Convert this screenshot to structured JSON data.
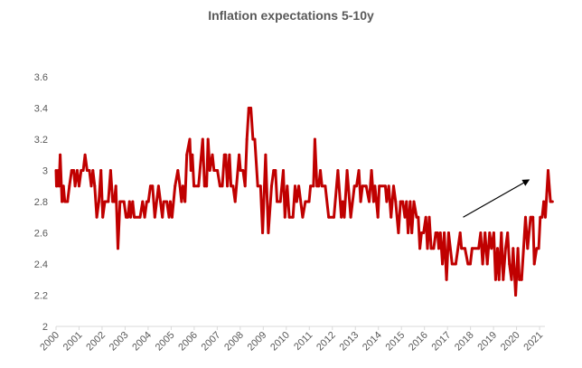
{
  "chart_data": {
    "type": "line",
    "title": "Inflation expectations 5-10y",
    "xlabel": "",
    "ylabel": "",
    "xlim": [
      2000,
      2021.6
    ],
    "ylim": [
      2,
      3.6
    ],
    "grid": false,
    "legend": "none",
    "x_ticks": [
      "2000",
      "2001",
      "2002",
      "2003",
      "2004",
      "2005",
      "2006",
      "2007",
      "2008",
      "2009",
      "2010",
      "2011",
      "2012",
      "2013",
      "2014",
      "2015",
      "2016",
      "2017",
      "2018",
      "2019",
      "2020",
      "2021"
    ],
    "y_ticks": [
      "2",
      "2.2",
      "2.4",
      "2.6",
      "2.8",
      "3",
      "3.2",
      "3.4",
      "3.6"
    ],
    "line_color": "#c00000",
    "series": [
      {
        "x": [
          2000.0,
          2000.02,
          2000.04,
          2000.09,
          2000.13,
          2000.18,
          2000.26,
          2000.32,
          2000.38,
          2000.5,
          2000.58,
          2000.68,
          2000.77,
          2000.83,
          2000.92,
          2001.0,
          2001.09,
          2001.18,
          2001.26,
          2001.35,
          2001.45,
          2001.53,
          2001.6,
          2001.68,
          2001.77,
          2001.86,
          2001.95,
          2002.03,
          2002.12,
          2002.27,
          2002.37,
          2002.46,
          2002.53,
          2002.6,
          2002.69,
          2002.78,
          2002.95,
          2003.04,
          2003.12,
          2003.19,
          2003.24,
          2003.33,
          2003.4,
          2003.65,
          2003.76,
          2003.85,
          2003.94,
          2004.01,
          2004.1,
          2004.19,
          2004.29,
          2004.45,
          2004.62,
          2004.68,
          2004.81,
          2004.91,
          2004.96,
          2005.04,
          2005.17,
          2005.29,
          2005.38,
          2005.45,
          2005.51,
          2005.6,
          2005.68,
          2005.81,
          2005.86,
          2005.92,
          2005.99,
          2006.19,
          2006.37,
          2006.45,
          2006.54,
          2006.6,
          2006.68,
          2006.79,
          2006.86,
          2007.01,
          2007.12,
          2007.22,
          2007.31,
          2007.37,
          2007.44,
          2007.53,
          2007.6,
          2007.69,
          2007.78,
          2007.95,
          2008.01,
          2008.12,
          2008.21,
          2008.29,
          2008.37,
          2008.46,
          2008.55,
          2008.63,
          2008.76,
          2008.88,
          2008.97,
          2009.1,
          2009.22,
          2009.36,
          2009.45,
          2009.53,
          2009.6,
          2009.74,
          2009.87,
          2009.94,
          2010.04,
          2010.13,
          2010.29,
          2010.38,
          2010.45,
          2010.54,
          2010.71,
          2010.83,
          2010.99,
          2011.05,
          2011.18,
          2011.24,
          2011.33,
          2011.41,
          2011.48,
          2011.55,
          2011.69,
          2011.84,
          2012.07,
          2012.24,
          2012.39,
          2012.45,
          2012.52,
          2012.64,
          2012.8,
          2012.96,
          2013.05,
          2013.15,
          2013.23,
          2013.31,
          2013.47,
          2013.6,
          2013.7,
          2013.79,
          2013.85,
          2013.98,
          2014.04,
          2014.3,
          2014.36,
          2014.45,
          2014.55,
          2014.66,
          2014.75,
          2014.87,
          2014.96,
          2015.06,
          2015.15,
          2015.22,
          2015.29,
          2015.38,
          2015.45,
          2015.54,
          2015.66,
          2015.73,
          2015.8,
          2015.87,
          2015.96,
          2016.06,
          2016.13,
          2016.21,
          2016.29,
          2016.4,
          2016.49,
          2016.57,
          2016.62,
          2016.69,
          2016.78,
          2016.86,
          2016.96,
          2017.05,
          2017.2,
          2017.36,
          2017.55,
          2017.61,
          2017.76,
          2017.89,
          2017.99,
          2018.07,
          2018.35,
          2018.44,
          2018.53,
          2018.63,
          2018.73,
          2018.83,
          2018.91,
          2019.01,
          2019.09,
          2019.17,
          2019.24,
          2019.34,
          2019.42,
          2019.52,
          2019.61,
          2019.69,
          2019.78,
          2019.85,
          2019.96,
          2020.06,
          2020.12,
          2020.22,
          2020.39,
          2020.48,
          2020.61,
          2020.71,
          2020.77,
          2020.87,
          2020.96,
          2021.03,
          2021.11,
          2021.18,
          2021.25,
          2021.37,
          2021.47,
          2021.56
        ],
        "y": [
          3.0,
          2.9,
          2.9,
          3.0,
          2.9,
          3.1,
          2.8,
          2.9,
          2.8,
          2.8,
          2.9,
          3.0,
          3.0,
          2.9,
          3.0,
          2.9,
          3.0,
          3.0,
          3.1,
          3.0,
          3.0,
          2.9,
          3.0,
          2.9,
          2.7,
          2.8,
          3.0,
          2.7,
          2.8,
          2.8,
          3.0,
          2.8,
          2.8,
          2.9,
          2.5,
          2.8,
          2.8,
          2.7,
          2.7,
          2.8,
          2.7,
          2.8,
          2.7,
          2.7,
          2.8,
          2.7,
          2.8,
          2.8,
          2.9,
          2.9,
          2.7,
          2.9,
          2.7,
          2.8,
          2.8,
          2.7,
          2.8,
          2.7,
          2.9,
          3.0,
          2.9,
          2.8,
          2.9,
          2.8,
          3.1,
          3.2,
          3.0,
          3.1,
          2.9,
          2.9,
          3.2,
          2.9,
          2.9,
          3.2,
          3.0,
          3.1,
          3.0,
          3.0,
          2.9,
          2.9,
          3.1,
          3.1,
          2.9,
          3.1,
          2.9,
          2.9,
          2.8,
          3.1,
          3.0,
          3.0,
          2.9,
          3.2,
          3.4,
          3.4,
          3.2,
          3.2,
          2.9,
          2.9,
          2.6,
          3.1,
          2.6,
          2.9,
          3.0,
          3.0,
          2.8,
          2.8,
          3.0,
          2.7,
          2.9,
          2.7,
          2.7,
          2.9,
          2.8,
          2.9,
          2.7,
          2.8,
          2.8,
          2.9,
          2.9,
          3.2,
          2.9,
          2.9,
          3.0,
          2.9,
          2.9,
          2.7,
          2.7,
          3.0,
          2.7,
          2.8,
          2.7,
          3.0,
          2.7,
          2.9,
          2.9,
          3.0,
          2.8,
          2.9,
          2.9,
          2.8,
          3.0,
          2.8,
          2.9,
          2.7,
          2.9,
          2.9,
          2.8,
          2.9,
          2.7,
          2.9,
          2.8,
          2.6,
          2.8,
          2.8,
          2.7,
          2.8,
          2.6,
          2.8,
          2.6,
          2.8,
          2.7,
          2.7,
          2.5,
          2.6,
          2.6,
          2.7,
          2.5,
          2.7,
          2.5,
          2.5,
          2.6,
          2.6,
          2.5,
          2.6,
          2.4,
          2.6,
          2.3,
          2.6,
          2.4,
          2.4,
          2.6,
          2.5,
          2.5,
          2.4,
          2.4,
          2.5,
          2.5,
          2.6,
          2.4,
          2.6,
          2.4,
          2.6,
          2.5,
          2.6,
          2.3,
          2.5,
          2.3,
          2.6,
          2.3,
          2.5,
          2.6,
          2.4,
          2.3,
          2.5,
          2.2,
          2.5,
          2.3,
          2.3,
          2.7,
          2.5,
          2.7,
          2.7,
          2.4,
          2.5,
          2.5,
          2.7,
          2.7,
          2.8,
          2.7,
          3.0,
          2.8,
          2.8
        ]
      }
    ],
    "annotations": [
      {
        "type": "arrow",
        "from": [
          2017.68,
          2.7
        ],
        "to": [
          2020.54,
          2.94
        ],
        "color": "#000000"
      }
    ]
  }
}
